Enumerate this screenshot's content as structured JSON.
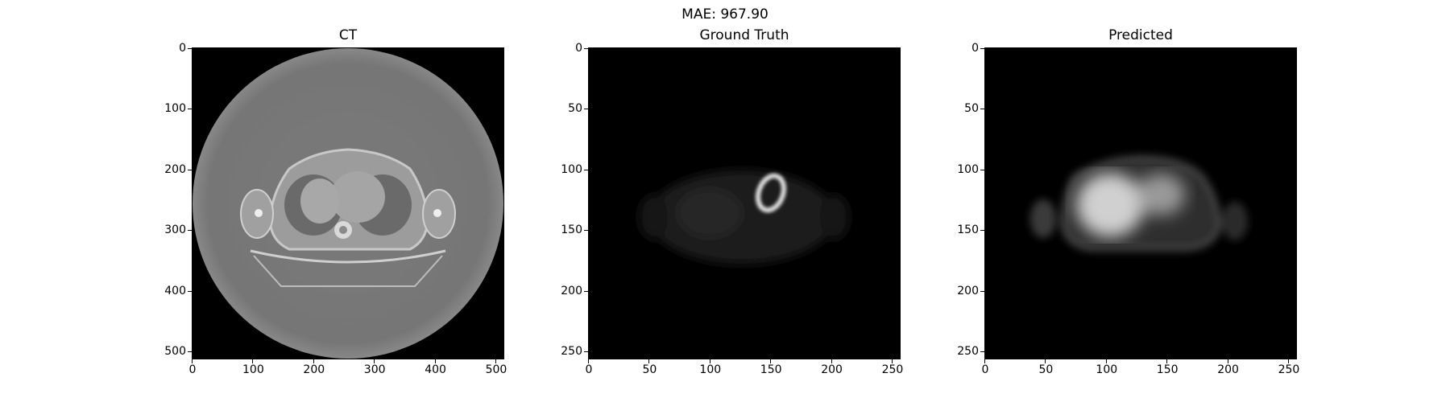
{
  "figure": {
    "suptitle": "MAE: 967.90"
  },
  "panels": [
    {
      "title": "CT",
      "extent": 512,
      "yticks": [
        "0",
        "100",
        "200",
        "300",
        "400",
        "500"
      ],
      "ytick_values": [
        0,
        100,
        200,
        300,
        400,
        500
      ],
      "xticks": [
        "0",
        "100",
        "200",
        "300",
        "400",
        "500"
      ],
      "xtick_values": [
        0,
        100,
        200,
        300,
        400,
        500
      ],
      "image": "axial CT slice of thorax"
    },
    {
      "title": "Ground Truth",
      "extent": 256,
      "yticks": [
        "0",
        "50",
        "100",
        "150",
        "200",
        "250"
      ],
      "ytick_values": [
        0,
        50,
        100,
        150,
        200,
        250
      ],
      "xticks": [
        "0",
        "50",
        "100",
        "150",
        "200",
        "250"
      ],
      "xtick_values": [
        0,
        50,
        100,
        150,
        200,
        250
      ],
      "image": "PET ground truth slice"
    },
    {
      "title": "Predicted",
      "extent": 256,
      "yticks": [
        "0",
        "50",
        "100",
        "150",
        "200",
        "250"
      ],
      "ytick_values": [
        0,
        50,
        100,
        150,
        200,
        250
      ],
      "xticks": [
        "0",
        "50",
        "100",
        "150",
        "200",
        "250"
      ],
      "xtick_values": [
        0,
        50,
        100,
        150,
        200,
        250
      ],
      "image": "PET predicted slice"
    }
  ]
}
